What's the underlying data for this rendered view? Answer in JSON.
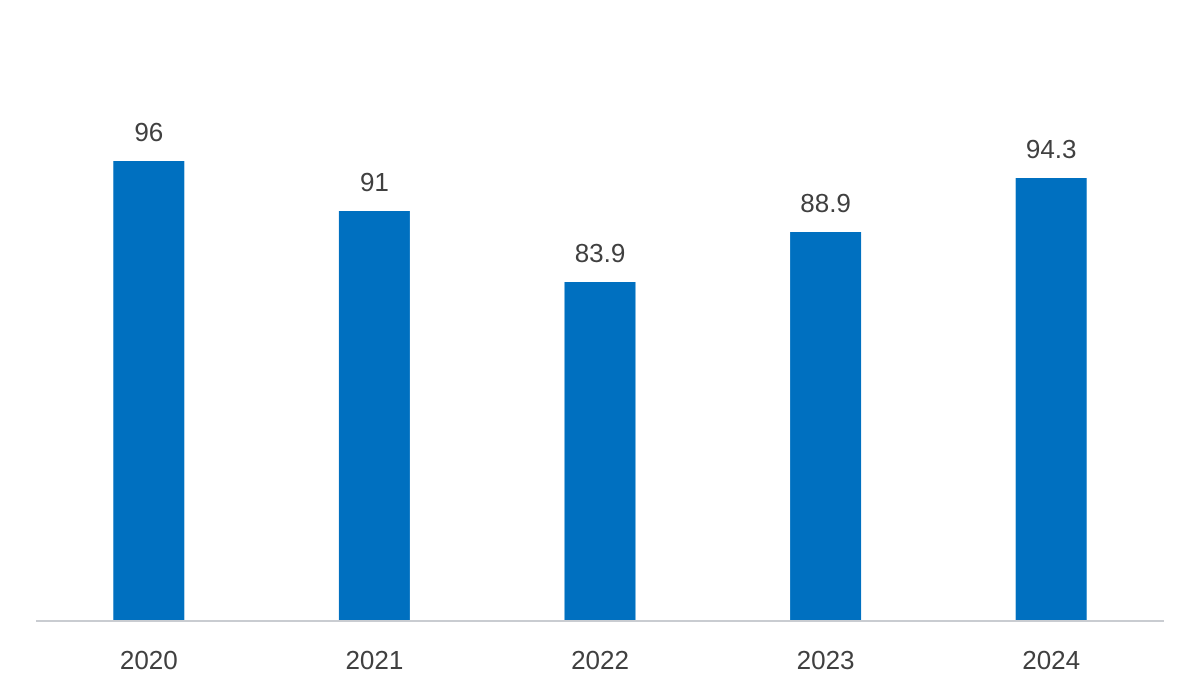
{
  "chart_data": {
    "type": "bar",
    "categories": [
      "2020",
      "2021",
      "2022",
      "2023",
      "2024"
    ],
    "values": [
      96,
      91,
      83.9,
      88.9,
      94.3
    ],
    "data_labels": [
      "96",
      "91",
      "83.9",
      "88.9",
      "94.3"
    ],
    "title": "",
    "xlabel": "",
    "ylabel": "",
    "ylim": [
      50,
      100
    ],
    "grid": false,
    "legend": "none",
    "colors": {
      "bar": "#0070C0",
      "axis": "#C9CCD1",
      "text": "#404040",
      "background": "#FFFFFF"
    }
  }
}
